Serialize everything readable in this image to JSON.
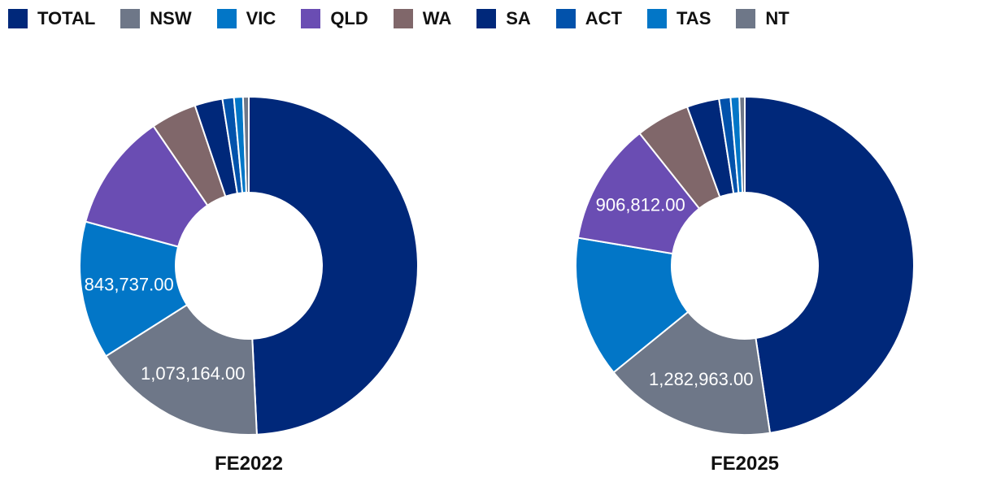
{
  "legend": [
    {
      "label": "TOTAL",
      "color": "#00287a"
    },
    {
      "label": "NSW",
      "color": "#6e7788"
    },
    {
      "label": "VIC",
      "color": "#0276c7"
    },
    {
      "label": "QLD",
      "color": "#6a4db3"
    },
    {
      "label": "WA",
      "color": "#80676a"
    },
    {
      "label": "SA",
      "color": "#00287a"
    },
    {
      "label": "ACT",
      "color": "#0252ab"
    },
    {
      "label": "TAS",
      "color": "#0276c7"
    },
    {
      "label": "NT",
      "color": "#6e7788"
    }
  ],
  "chart_data": [
    {
      "type": "pie",
      "title": "FE2022",
      "categories": [
        "TOTAL",
        "NSW",
        "VIC",
        "QLD",
        "WA",
        "SA",
        "ACT",
        "TAS",
        "NT"
      ],
      "values": [
        3150000,
        1073164,
        843737,
        720000,
        280000,
        170000,
        70000,
        55000,
        35000
      ],
      "data_labels": [
        "",
        "1,073,164.00",
        "843,737.00",
        "",
        "",
        "",
        "",
        "",
        ""
      ],
      "hole": "donut"
    },
    {
      "type": "pie",
      "title": "FE2025",
      "categories": [
        "TOTAL",
        "NSW",
        "VIC",
        "QLD",
        "WA",
        "SA",
        "ACT",
        "TAS",
        "NT"
      ],
      "values": [
        3700000,
        1282963,
        1050000,
        906812,
        400000,
        240000,
        85000,
        65000,
        40000
      ],
      "data_labels": [
        "",
        "1,282,963.00",
        "",
        "906,812.00",
        "",
        "",
        "",
        "",
        ""
      ],
      "hole": "donut"
    }
  ]
}
